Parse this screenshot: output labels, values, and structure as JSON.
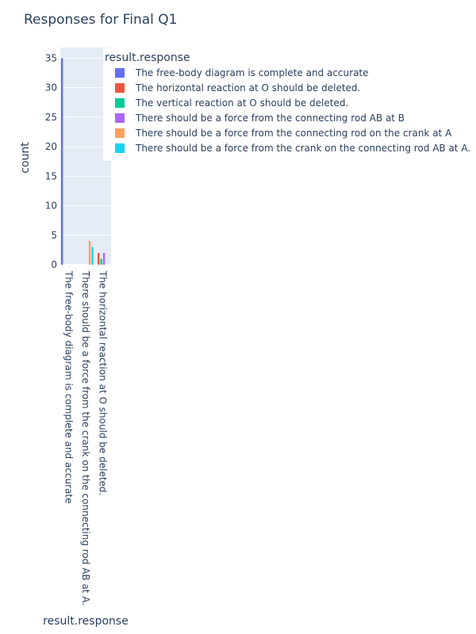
{
  "chart_data": {
    "type": "bar",
    "title": "Responses for Final Q1",
    "xlabel": "result.response",
    "ylabel": "count",
    "ylim": [
      0,
      36.8
    ],
    "yticks": [
      0,
      5,
      10,
      15,
      20,
      25,
      30,
      35
    ],
    "grid": true,
    "legend_title": "result.response",
    "legend_position": "top-right",
    "categories": [
      "The free-body diagram is complete and accurate",
      "There should be a force from the crank on the connecting rod AB at A.",
      "The horizontal reaction at O should be deleted."
    ],
    "series": [
      {
        "name": "The free-body diagram is complete and accurate",
        "color": "#636efa",
        "values": [
          35,
          null,
          null
        ]
      },
      {
        "name": "The horizontal reaction at O should be deleted.",
        "color": "#ef553b",
        "values": [
          null,
          null,
          2
        ]
      },
      {
        "name": "The vertical reaction at O should be deleted.",
        "color": "#00cc96",
        "values": [
          null,
          null,
          1
        ]
      },
      {
        "name": "There should be a force from the connecting rod AB at B",
        "color": "#ab63fa",
        "values": [
          null,
          null,
          2
        ]
      },
      {
        "name": "There should be a force from the connecting rod on the crank at A",
        "color": "#ffa15a",
        "values": [
          null,
          4,
          null
        ]
      },
      {
        "name": "There should be a force from the crank on the connecting rod AB at A.",
        "color": "#19d3f3",
        "values": [
          null,
          3,
          null
        ]
      }
    ]
  }
}
